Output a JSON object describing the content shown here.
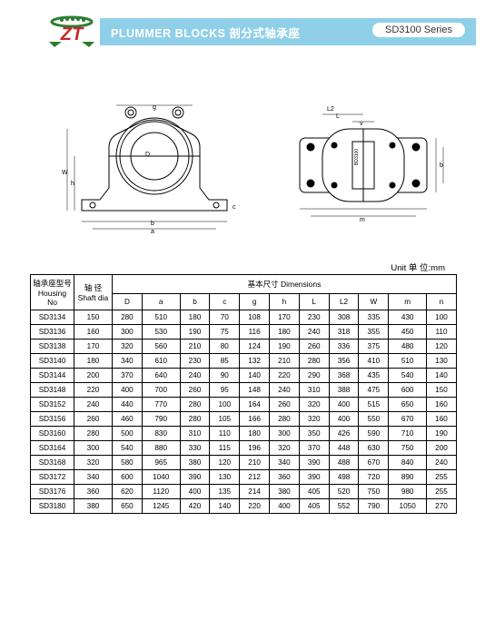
{
  "header": {
    "title": "PLUMMER BLOCKS 剖分式轴承座",
    "series": "SD3100 Series",
    "bar_color": "#8fd0e8",
    "logo_text": "ZT"
  },
  "unit_label": "Unit 单 位:mm",
  "diagram": {
    "left_labels": [
      "W",
      "h",
      "D",
      "c",
      "g",
      "b",
      "a"
    ],
    "right_labels": [
      "v",
      "L",
      "L2",
      "n",
      "b",
      "m",
      "BD3100"
    ]
  },
  "table": {
    "header": {
      "col1_line1": "轴承座型号",
      "col1_line2": "Housing",
      "col1_line3": "No",
      "col2_line1": "轴 径",
      "col2_line2": "Shaft dia",
      "group_label": "基本尺寸 Dimensions",
      "subcols": [
        "D",
        "a",
        "b",
        "c",
        "g",
        "h",
        "L",
        "L2",
        "W",
        "m",
        "n"
      ]
    },
    "rows": [
      {
        "no": "SD3134",
        "shaft": "150",
        "v": [
          "280",
          "510",
          "180",
          "70",
          "108",
          "170",
          "230",
          "308",
          "335",
          "430",
          "100"
        ]
      },
      {
        "no": "SD3136",
        "shaft": "160",
        "v": [
          "300",
          "530",
          "190",
          "75",
          "116",
          "180",
          "240",
          "318",
          "355",
          "450",
          "110"
        ]
      },
      {
        "no": "SD3138",
        "shaft": "170",
        "v": [
          "320",
          "560",
          "210",
          "80",
          "124",
          "190",
          "260",
          "336",
          "375",
          "480",
          "120"
        ]
      },
      {
        "no": "SD3140",
        "shaft": "180",
        "v": [
          "340",
          "610",
          "230",
          "85",
          "132",
          "210",
          "280",
          "356",
          "410",
          "510",
          "130"
        ]
      },
      {
        "no": "SD3144",
        "shaft": "200",
        "v": [
          "370",
          "640",
          "240",
          "90",
          "140",
          "220",
          "290",
          "368",
          "435",
          "540",
          "140"
        ]
      },
      {
        "no": "SD3148",
        "shaft": "220",
        "v": [
          "400",
          "700",
          "260",
          "95",
          "148",
          "240",
          "310",
          "388",
          "475",
          "600",
          "150"
        ]
      },
      {
        "no": "SD3152",
        "shaft": "240",
        "v": [
          "440",
          "770",
          "280",
          "100",
          "164",
          "260",
          "320",
          "400",
          "515",
          "650",
          "160"
        ]
      },
      {
        "no": "SD3156",
        "shaft": "260",
        "v": [
          "460",
          "790",
          "280",
          "105",
          "166",
          "280",
          "320",
          "400",
          "550",
          "670",
          "160"
        ]
      },
      {
        "no": "SD3160",
        "shaft": "280",
        "v": [
          "500",
          "830",
          "310",
          "110",
          "180",
          "300",
          "350",
          "426",
          "590",
          "710",
          "190"
        ]
      },
      {
        "no": "SD3164",
        "shaft": "300",
        "v": [
          "540",
          "880",
          "330",
          "115",
          "196",
          "320",
          "370",
          "448",
          "630",
          "750",
          "200"
        ]
      },
      {
        "no": "SD3168",
        "shaft": "320",
        "v": [
          "580",
          "965",
          "380",
          "120",
          "210",
          "340",
          "390",
          "488",
          "670",
          "840",
          "240"
        ]
      },
      {
        "no": "SD3172",
        "shaft": "340",
        "v": [
          "600",
          "1040",
          "390",
          "130",
          "212",
          "360",
          "390",
          "498",
          "720",
          "890",
          "255"
        ]
      },
      {
        "no": "SD3176",
        "shaft": "360",
        "v": [
          "620",
          "1120",
          "400",
          "135",
          "214",
          "380",
          "405",
          "520",
          "750",
          "980",
          "255"
        ]
      },
      {
        "no": "SD3180",
        "shaft": "380",
        "v": [
          "650",
          "1245",
          "420",
          "140",
          "220",
          "400",
          "405",
          "552",
          "790",
          "1050",
          "270"
        ]
      }
    ]
  }
}
